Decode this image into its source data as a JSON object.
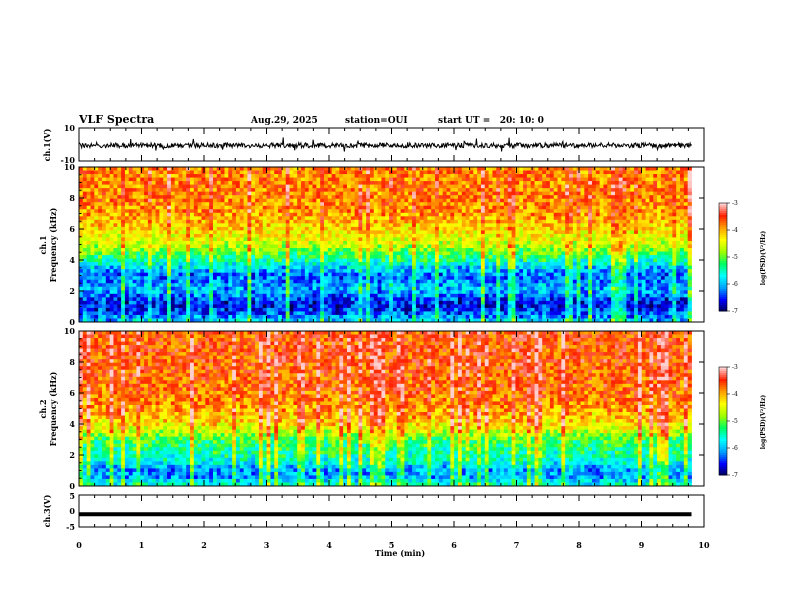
{
  "header": {
    "title": "VLF Spectra",
    "date": "Aug.29, 2025",
    "station": "station=OUI",
    "start_ut": "start UT =   20: 10: 0"
  },
  "chart_data": [
    {
      "type": "line",
      "panel": "ch1-waveform",
      "ylabel": "ch.1(V)",
      "ylim": [
        -10,
        10
      ],
      "y_ticks": [
        "10",
        "-10"
      ],
      "xlim": [
        0,
        10
      ],
      "trace_level": -0.5,
      "trace_amplitude": 1.5,
      "trace_end": 9.8,
      "trace_color": "#000000"
    },
    {
      "type": "heatmap",
      "panel": "ch1-spectrogram",
      "ylabel_line1": "ch.1",
      "ylabel_line2": "Frequency (kHz)",
      "ylim": [
        0,
        10
      ],
      "y_ticks": [
        "0",
        "2",
        "4",
        "6",
        "8",
        "10"
      ],
      "xlim": [
        0,
        10
      ],
      "data_end": 9.8,
      "colorbar": {
        "label": "log(PSD)(V²/Hz)",
        "range": [
          -7,
          -3
        ],
        "ticks": [
          "-3",
          "-4",
          "-5",
          "-6",
          "-7"
        ]
      },
      "freq_profile": [
        {
          "f": 0.0,
          "v": -5.8
        },
        {
          "f": 0.5,
          "v": -6.3
        },
        {
          "f": 1.0,
          "v": -6.6
        },
        {
          "f": 1.5,
          "v": -6.4
        },
        {
          "f": 2.0,
          "v": -6.0
        },
        {
          "f": 2.5,
          "v": -6.1
        },
        {
          "f": 3.0,
          "v": -6.3
        },
        {
          "f": 3.5,
          "v": -5.9
        },
        {
          "f": 4.0,
          "v": -5.4
        },
        {
          "f": 4.5,
          "v": -5.0
        },
        {
          "f": 5.0,
          "v": -4.6
        },
        {
          "f": 6.0,
          "v": -4.2
        },
        {
          "f": 7.0,
          "v": -3.9
        },
        {
          "f": 8.0,
          "v": -3.8
        },
        {
          "f": 10.0,
          "v": -3.8
        }
      ]
    },
    {
      "type": "heatmap",
      "panel": "ch2-spectrogram",
      "ylabel_line1": "ch.2",
      "ylabel_line2": "Frequency (kHz)",
      "ylim": [
        0,
        10
      ],
      "y_ticks": [
        "0",
        "2",
        "4",
        "6",
        "8",
        "10"
      ],
      "xlim": [
        0,
        10
      ],
      "data_end": 9.8,
      "colorbar": {
        "label": "log(PSD)(V²/Hz)",
        "range": [
          -7,
          -3
        ],
        "ticks": [
          "-3",
          "-4",
          "-5",
          "-6",
          "-7"
        ]
      },
      "freq_profile": [
        {
          "f": 0.0,
          "v": -5.4
        },
        {
          "f": 0.5,
          "v": -6.0
        },
        {
          "f": 1.0,
          "v": -6.1
        },
        {
          "f": 1.5,
          "v": -5.6
        },
        {
          "f": 2.0,
          "v": -5.4
        },
        {
          "f": 2.5,
          "v": -5.3
        },
        {
          "f": 3.0,
          "v": -5.1
        },
        {
          "f": 3.5,
          "v": -4.6
        },
        {
          "f": 4.0,
          "v": -4.2
        },
        {
          "f": 5.0,
          "v": -3.9
        },
        {
          "f": 6.0,
          "v": -3.7
        },
        {
          "f": 8.0,
          "v": -3.6
        },
        {
          "f": 10.0,
          "v": -3.6
        }
      ]
    },
    {
      "type": "line",
      "panel": "ch3-waveform",
      "ylabel": "ch.3(V)",
      "ylim": [
        -5,
        5
      ],
      "y_ticks": [
        "5",
        "0",
        "-5"
      ],
      "xlim": [
        0,
        10
      ],
      "trace_level": -1.0,
      "trace_end": 9.8,
      "trace_color": "#000000"
    }
  ],
  "x_axis": {
    "label": "Time (min)",
    "ticks": [
      "0",
      "1",
      "2",
      "3",
      "4",
      "5",
      "6",
      "7",
      "8",
      "9",
      "10"
    ]
  },
  "colors": {
    "colormap": [
      "#000050",
      "#0000ff",
      "#00a0ff",
      "#00ffff",
      "#00ff60",
      "#a0ff00",
      "#ffff00",
      "#ffa000",
      "#ff2000",
      "#ffd0d0"
    ]
  }
}
